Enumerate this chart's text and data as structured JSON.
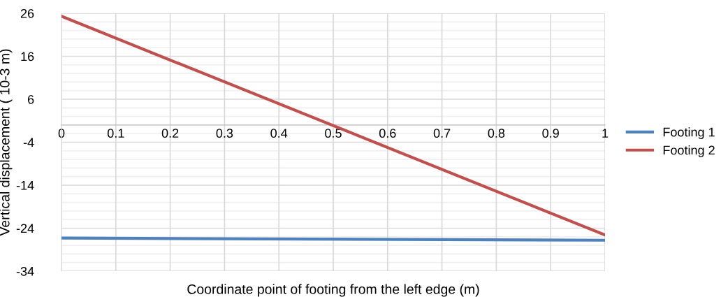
{
  "chart_data": {
    "type": "line",
    "xlabel": "Coordinate point of footing from the left edge (m)",
    "ylabel": "Vertical displacement ( 10-3 m)",
    "x": [
      0,
      1
    ],
    "series": [
      {
        "name": "Footing 1",
        "color": "#4f81bd",
        "values": [
          -26.3,
          -26.8
        ]
      },
      {
        "name": "Footing 2",
        "color": "#c0504d",
        "values": [
          25.3,
          -25.6
        ]
      }
    ],
    "xlim": [
      0,
      1
    ],
    "xticks": [
      0,
      0.1,
      0.2,
      0.3,
      0.4,
      0.5,
      0.6,
      0.7,
      0.8,
      0.9,
      1
    ],
    "ylim": [
      -34,
      26
    ],
    "yticks": [
      -34,
      -24,
      -14,
      -4,
      6,
      16,
      26
    ],
    "grid": true,
    "legend": "right",
    "marker": "none",
    "line_style": "solid"
  }
}
